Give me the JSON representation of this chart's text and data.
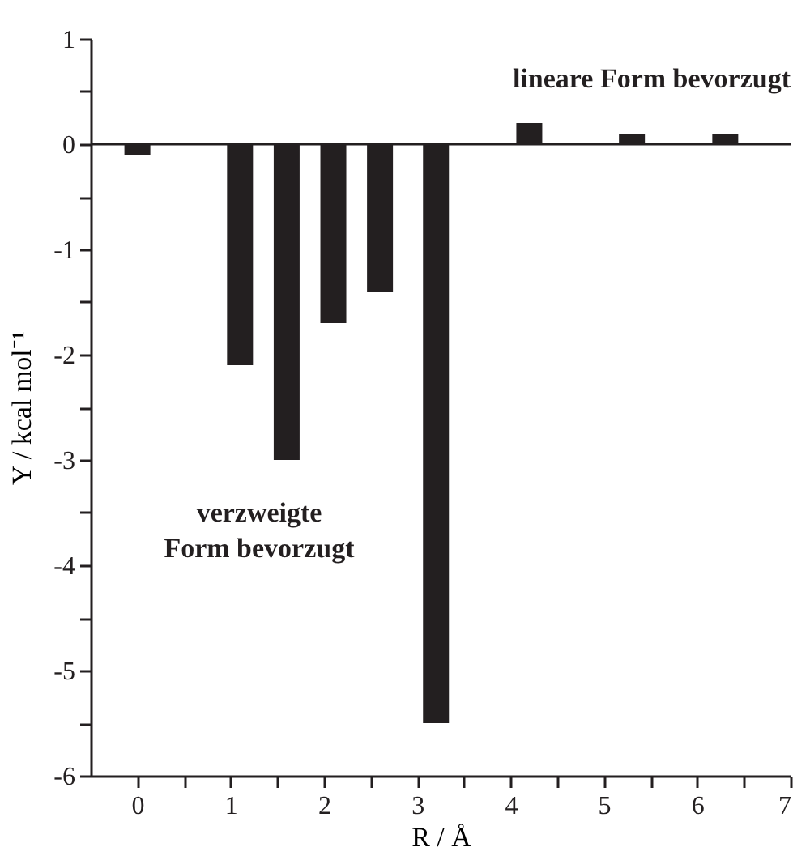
{
  "chart_data": {
    "type": "bar",
    "xlabel": "R / Å",
    "ylabel": "Y / kcal mol⁻¹",
    "x": [
      0,
      1.1,
      1.6,
      2.1,
      2.6,
      3.2,
      4.2,
      5.3,
      6.3
    ],
    "values": [
      -0.1,
      -2.1,
      -3.0,
      -1.7,
      -1.4,
      -5.5,
      0.2,
      0.1,
      0.1
    ],
    "color": "#231f20",
    "xlim": [
      -0.5,
      7
    ],
    "ylim": [
      -6,
      1
    ],
    "xticks": [
      0,
      {
        "value": 0.5,
        "label": null
      },
      1,
      {
        "value": 1.5,
        "label": null
      },
      2,
      {
        "value": 2.5,
        "label": null
      },
      3,
      {
        "value": 3.5,
        "label": null
      },
      4,
      {
        "value": 4.5,
        "label": null
      },
      5,
      {
        "value": 5.5,
        "label": null
      },
      6,
      {
        "value": 6.5,
        "label": null
      },
      7
    ],
    "yticks": [
      -6,
      {
        "value": -5.5,
        "label": null
      },
      -5,
      {
        "value": -4.5,
        "label": null
      },
      -4,
      {
        "value": -3.5,
        "label": null
      },
      -3,
      {
        "value": -2.5,
        "label": null
      },
      -2,
      {
        "value": -1.5,
        "label": null
      },
      -1,
      {
        "value": -0.5,
        "label": null
      },
      0,
      {
        "value": 0.5,
        "label": null
      },
      1
    ],
    "ref_lines": [
      {
        "axis": "y",
        "value": 0
      }
    ],
    "annotations": [
      "lineare Form bevorzugt",
      "verzweigte Form bevorzugt"
    ]
  }
}
